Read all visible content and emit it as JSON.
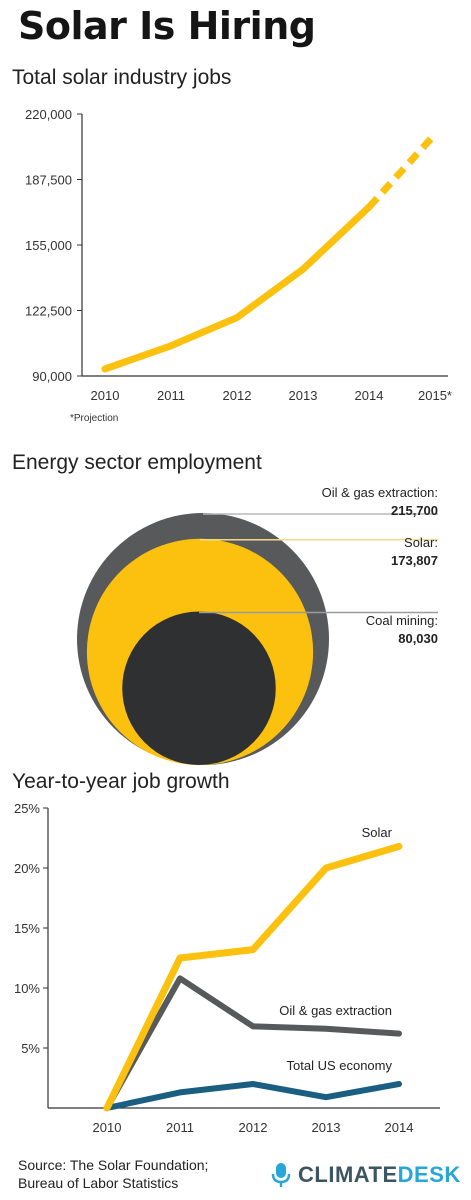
{
  "title": "Solar Is Hiring",
  "colors": {
    "solar": "#fbc10e",
    "oil": "#58595b",
    "coal": "#2f3031",
    "us": "#1a5e82",
    "axis": "#333333",
    "grid": "#cccccc"
  },
  "chart_data": [
    {
      "type": "line",
      "title": "Total solar industry jobs",
      "categories": [
        "2010",
        "2011",
        "2012",
        "2013",
        "2014",
        "2015*"
      ],
      "series": [
        {
          "values": [
            93500,
            105000,
            119000,
            143000,
            173807,
            210000
          ]
        }
      ],
      "yticks": [
        "90,000",
        "122,500",
        "155,000",
        "187,500",
        "220,000"
      ],
      "ylim": [
        90000,
        220000
      ],
      "projection_from": "2014",
      "note": "*Projection"
    },
    {
      "type": "bubble",
      "title": "Energy sector employment",
      "items": [
        {
          "label": "Oil & gas extraction:",
          "value_text": "215,700",
          "value": 215700
        },
        {
          "label": "Solar:",
          "value_text": "173,807",
          "value": 173807
        },
        {
          "label": "Coal mining:",
          "value_text": "80,030",
          "value": 80030
        }
      ]
    },
    {
      "type": "line",
      "title": "Year-to-year job growth",
      "categories": [
        "2010",
        "2011",
        "2012",
        "2013",
        "2014"
      ],
      "yticks": [
        "5%",
        "10%",
        "15%",
        "20%",
        "25%"
      ],
      "ylim": [
        0,
        25
      ],
      "series": [
        {
          "name": "Solar",
          "values": [
            0,
            12.5,
            13.2,
            20,
            21.8
          ]
        },
        {
          "name": "Oil & gas extraction",
          "values": [
            0,
            10.8,
            6.8,
            6.6,
            6.2
          ]
        },
        {
          "name": "Total US economy",
          "values": [
            0,
            1.3,
            2.0,
            0.9,
            2.0
          ]
        }
      ]
    }
  ],
  "footer": {
    "line1": "Source: The Solar Foundation;",
    "line2": "Bureau of Labor Statistics"
  },
  "brand": {
    "part1": "CLIMATE",
    "part2": "DESK",
    "icon": "microphone-icon"
  }
}
